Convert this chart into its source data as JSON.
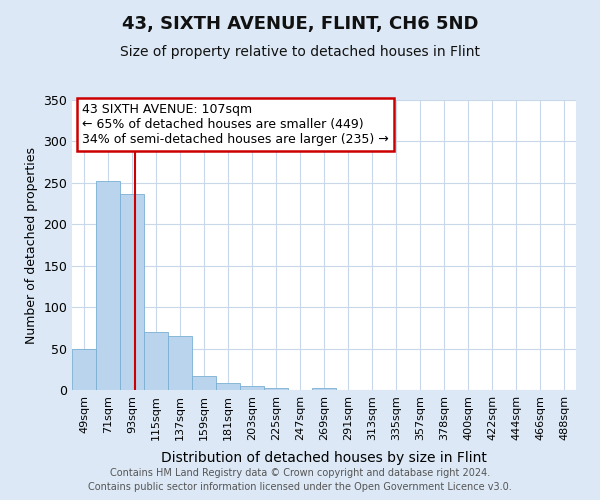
{
  "title": "43, SIXTH AVENUE, FLINT, CH6 5ND",
  "subtitle": "Size of property relative to detached houses in Flint",
  "xlabel": "Distribution of detached houses by size in Flint",
  "ylabel": "Number of detached properties",
  "bar_labels": [
    "49sqm",
    "71sqm",
    "93sqm",
    "115sqm",
    "137sqm",
    "159sqm",
    "181sqm",
    "203sqm",
    "225sqm",
    "247sqm",
    "269sqm",
    "291sqm",
    "313sqm",
    "335sqm",
    "357sqm",
    "378sqm",
    "400sqm",
    "422sqm",
    "444sqm",
    "466sqm",
    "488sqm"
  ],
  "bar_values": [
    50,
    252,
    236,
    70,
    65,
    17,
    8,
    5,
    2,
    0,
    2,
    0,
    0,
    0,
    0,
    0,
    0,
    0,
    0,
    0,
    0
  ],
  "bar_color": "#bad4ed",
  "bar_edge_color": "#7aafd4",
  "vline_x": 2.636,
  "vline_color": "#cc0000",
  "annotation_title": "43 SIXTH AVENUE: 107sqm",
  "annotation_line1": "← 65% of detached houses are smaller (449)",
  "annotation_line2": "34% of semi-detached houses are larger (235) →",
  "annotation_box_facecolor": "#ffffff",
  "annotation_box_edgecolor": "#cc0000",
  "ylim": [
    0,
    350
  ],
  "yticks": [
    0,
    50,
    100,
    150,
    200,
    250,
    300,
    350
  ],
  "figure_bg": "#dce8f5",
  "plot_bg": "#ffffff",
  "grid_color": "#c8d8e8",
  "footer1": "Contains HM Land Registry data © Crown copyright and database right 2024.",
  "footer2": "Contains public sector information licensed under the Open Government Licence v3.0.",
  "title_fontsize": 13,
  "subtitle_fontsize": 10,
  "ylabel_fontsize": 9,
  "xlabel_fontsize": 10,
  "ytick_fontsize": 9,
  "xtick_fontsize": 8,
  "annotation_fontsize": 9,
  "footer_fontsize": 7
}
